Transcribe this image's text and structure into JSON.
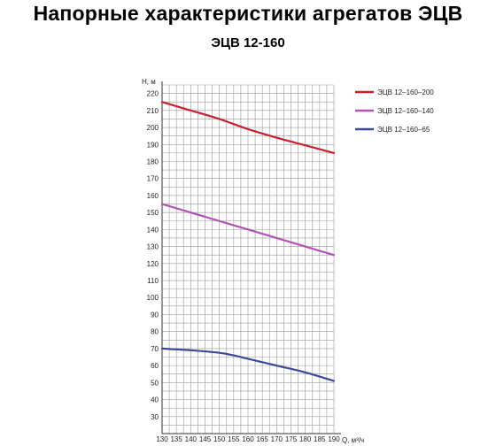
{
  "page": {
    "title": "Напорные характеристики агрегатов ЭЦВ"
  },
  "chart_data": {
    "type": "line",
    "title": "ЭЦВ 12-160",
    "xlabel": "Q, м³/ч",
    "ylabel": "H, м",
    "xlim": [
      130,
      190
    ],
    "ylim": [
      20,
      225
    ],
    "x_ticks": [
      130,
      135,
      140,
      145,
      150,
      155,
      160,
      165,
      170,
      175,
      180,
      185,
      190
    ],
    "y_ticks": [
      30,
      40,
      50,
      60,
      70,
      80,
      90,
      100,
      110,
      120,
      130,
      140,
      150,
      160,
      170,
      180,
      190,
      200,
      210,
      220
    ],
    "grid": true,
    "legend_position": "right",
    "series": [
      {
        "name": "ЭЦВ 12–160–200",
        "color": "#cc1f2e",
        "x": [
          130,
          140,
          150,
          160,
          170,
          180,
          190
        ],
        "y": [
          215,
          210,
          205,
          199,
          194,
          189.5,
          185
        ]
      },
      {
        "name": "ЭЦВ 12–160–140",
        "color": "#b352b5",
        "x": [
          130,
          140,
          150,
          160,
          170,
          180,
          190
        ],
        "y": [
          155,
          150,
          145,
          140,
          135,
          130,
          125
        ]
      },
      {
        "name": "ЭЦВ 12–160–65",
        "color": "#3d4a9c",
        "x": [
          130,
          140,
          150,
          155,
          160,
          170,
          180,
          190
        ],
        "y": [
          70,
          69,
          67.5,
          66,
          64,
          60,
          56,
          51
        ]
      }
    ]
  }
}
